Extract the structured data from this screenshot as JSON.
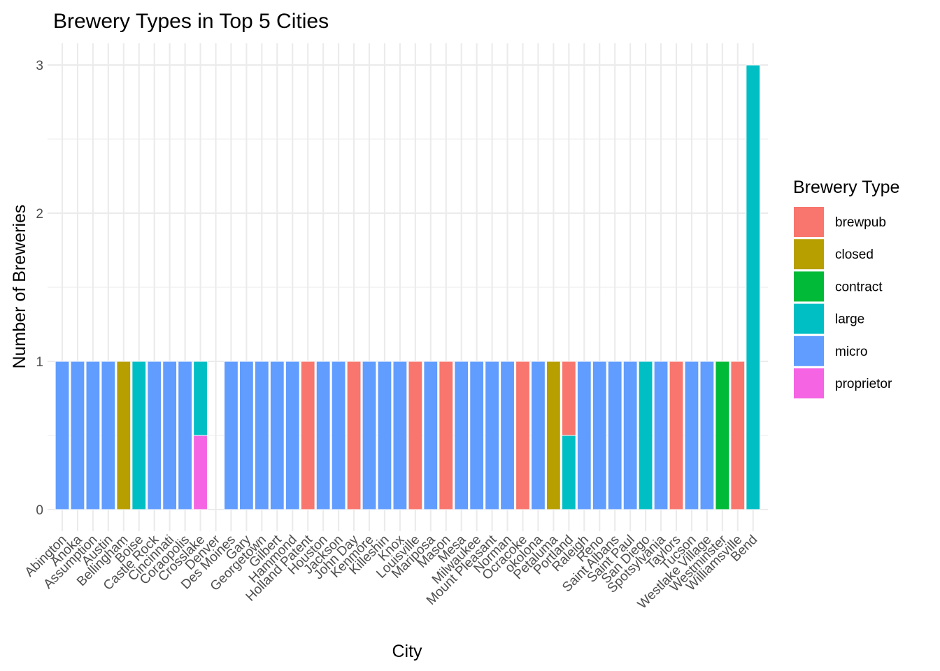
{
  "chart_data": {
    "type": "bar",
    "stacked": true,
    "title": "Brewery Types in Top 5 Cities",
    "xlabel": "City",
    "ylabel": "Number of Breweries",
    "ylim": [
      0,
      3
    ],
    "y_ticks": [
      0,
      1,
      2,
      3
    ],
    "grid": true,
    "legend_title": "Brewery Type",
    "legend_position": "right",
    "categories": [
      "Abington",
      "Anoka",
      "Assumption",
      "Austin",
      "Bellingham",
      "Boise",
      "Castle Rock",
      "Cincinnati",
      "Coraopolis",
      "Crosslake",
      "Denver",
      "Des Moines",
      "Gary",
      "Georgetown",
      "Gilbert",
      "Hammond",
      "Holland Patent",
      "Houston",
      "Jackson",
      "John Day",
      "Kenmore",
      "Killeshin",
      "Knox",
      "Louisville",
      "Mariposa",
      "Mason",
      "Mesa",
      "Milwaukee",
      "Mount Pleasant",
      "Norman",
      "Ocracoke",
      "okolona",
      "Petaluma",
      "Portland",
      "Raleigh",
      "Reno",
      "Saint Albans",
      "Saint Paul",
      "San Diego",
      "Spotsylvania",
      "Taylors",
      "Tucson",
      "Westlake Village",
      "Westminster",
      "Williamsville",
      "Bend"
    ],
    "series": [
      {
        "name": "brewpub",
        "color": "#F8766D",
        "values": [
          0,
          0,
          0,
          0,
          0,
          0,
          0,
          0,
          0,
          0,
          0,
          0,
          0,
          0,
          0,
          0,
          1,
          0,
          0,
          1,
          0,
          0,
          0,
          1,
          0,
          1,
          0,
          0,
          0,
          0,
          1,
          0,
          0,
          0.5,
          0,
          0,
          0,
          0,
          0,
          0,
          1,
          0,
          0,
          0,
          1,
          0
        ]
      },
      {
        "name": "closed",
        "color": "#B79F00",
        "values": [
          0,
          0,
          0,
          0,
          1,
          0,
          0,
          0,
          0,
          0,
          0,
          0,
          0,
          0,
          0,
          0,
          0,
          0,
          0,
          0,
          0,
          0,
          0,
          0,
          0,
          0,
          0,
          0,
          0,
          0,
          0,
          0,
          1,
          0,
          0,
          0,
          0,
          0,
          0,
          0,
          0,
          0,
          0,
          0,
          0,
          0
        ]
      },
      {
        "name": "contract",
        "color": "#00BA38",
        "values": [
          0,
          0,
          0,
          0,
          0,
          0,
          0,
          0,
          0,
          0,
          0,
          0,
          0,
          0,
          0,
          0,
          0,
          0,
          0,
          0,
          0,
          0,
          0,
          0,
          0,
          0,
          0,
          0,
          0,
          0,
          0,
          0,
          0,
          0,
          0,
          0,
          0,
          0,
          0,
          0,
          0,
          0,
          0,
          1,
          0,
          0
        ]
      },
      {
        "name": "large",
        "color": "#00BFC4",
        "values": [
          0,
          0,
          0,
          0,
          0,
          1,
          0,
          0,
          0,
          0.5,
          0,
          0,
          0,
          0,
          0,
          0,
          0,
          0,
          0,
          0,
          0,
          0,
          0,
          0,
          0,
          0,
          0,
          0,
          0,
          0,
          0,
          0,
          0,
          0.5,
          0,
          0,
          0,
          0,
          1,
          0,
          0,
          0,
          0,
          0,
          0,
          3
        ]
      },
      {
        "name": "micro",
        "color": "#619CFF",
        "values": [
          1,
          1,
          1,
          1,
          0,
          0,
          1,
          1,
          1,
          0,
          0,
          1,
          1,
          1,
          1,
          1,
          0,
          1,
          1,
          0,
          1,
          1,
          1,
          0,
          1,
          0,
          1,
          1,
          1,
          1,
          0,
          1,
          0,
          0,
          1,
          1,
          1,
          1,
          0,
          1,
          0,
          1,
          1,
          0,
          0,
          0
        ]
      },
      {
        "name": "proprietor",
        "color": "#F564E3",
        "values": [
          0,
          0,
          0,
          0,
          0,
          0,
          0,
          0,
          0,
          0.5,
          0,
          0,
          0,
          0,
          0,
          0,
          0,
          0,
          0,
          0,
          0,
          0,
          0,
          0,
          0,
          0,
          0,
          0,
          0,
          0,
          0,
          0,
          0,
          0,
          0,
          0,
          0,
          0,
          0,
          0,
          0,
          0,
          0,
          0,
          0,
          0
        ]
      }
    ]
  }
}
